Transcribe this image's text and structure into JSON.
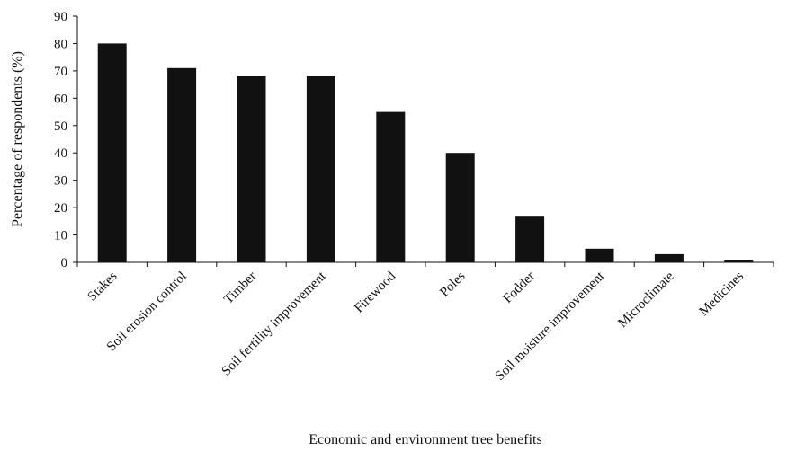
{
  "chart_data": {
    "type": "bar",
    "title": "",
    "xlabel": "Economic and environment tree benefits",
    "ylabel": "Percentage of respondents (%)",
    "categories": [
      "Stakes",
      "Soil erosion control",
      "Timber",
      "Soil fertility improvement",
      "Firewood",
      "Poles",
      "Fodder",
      "Soil moisture improvement",
      "Microclimate",
      "Medicines"
    ],
    "values": [
      80,
      71,
      68,
      68,
      55,
      40,
      17,
      5,
      3,
      1
    ],
    "ylim": [
      0,
      90
    ],
    "yticks": [
      "0",
      "10",
      "20",
      "30",
      "40",
      "50",
      "60",
      "70",
      "80",
      "90"
    ],
    "grid": false,
    "legend": "none",
    "bar_color": "#111111"
  }
}
